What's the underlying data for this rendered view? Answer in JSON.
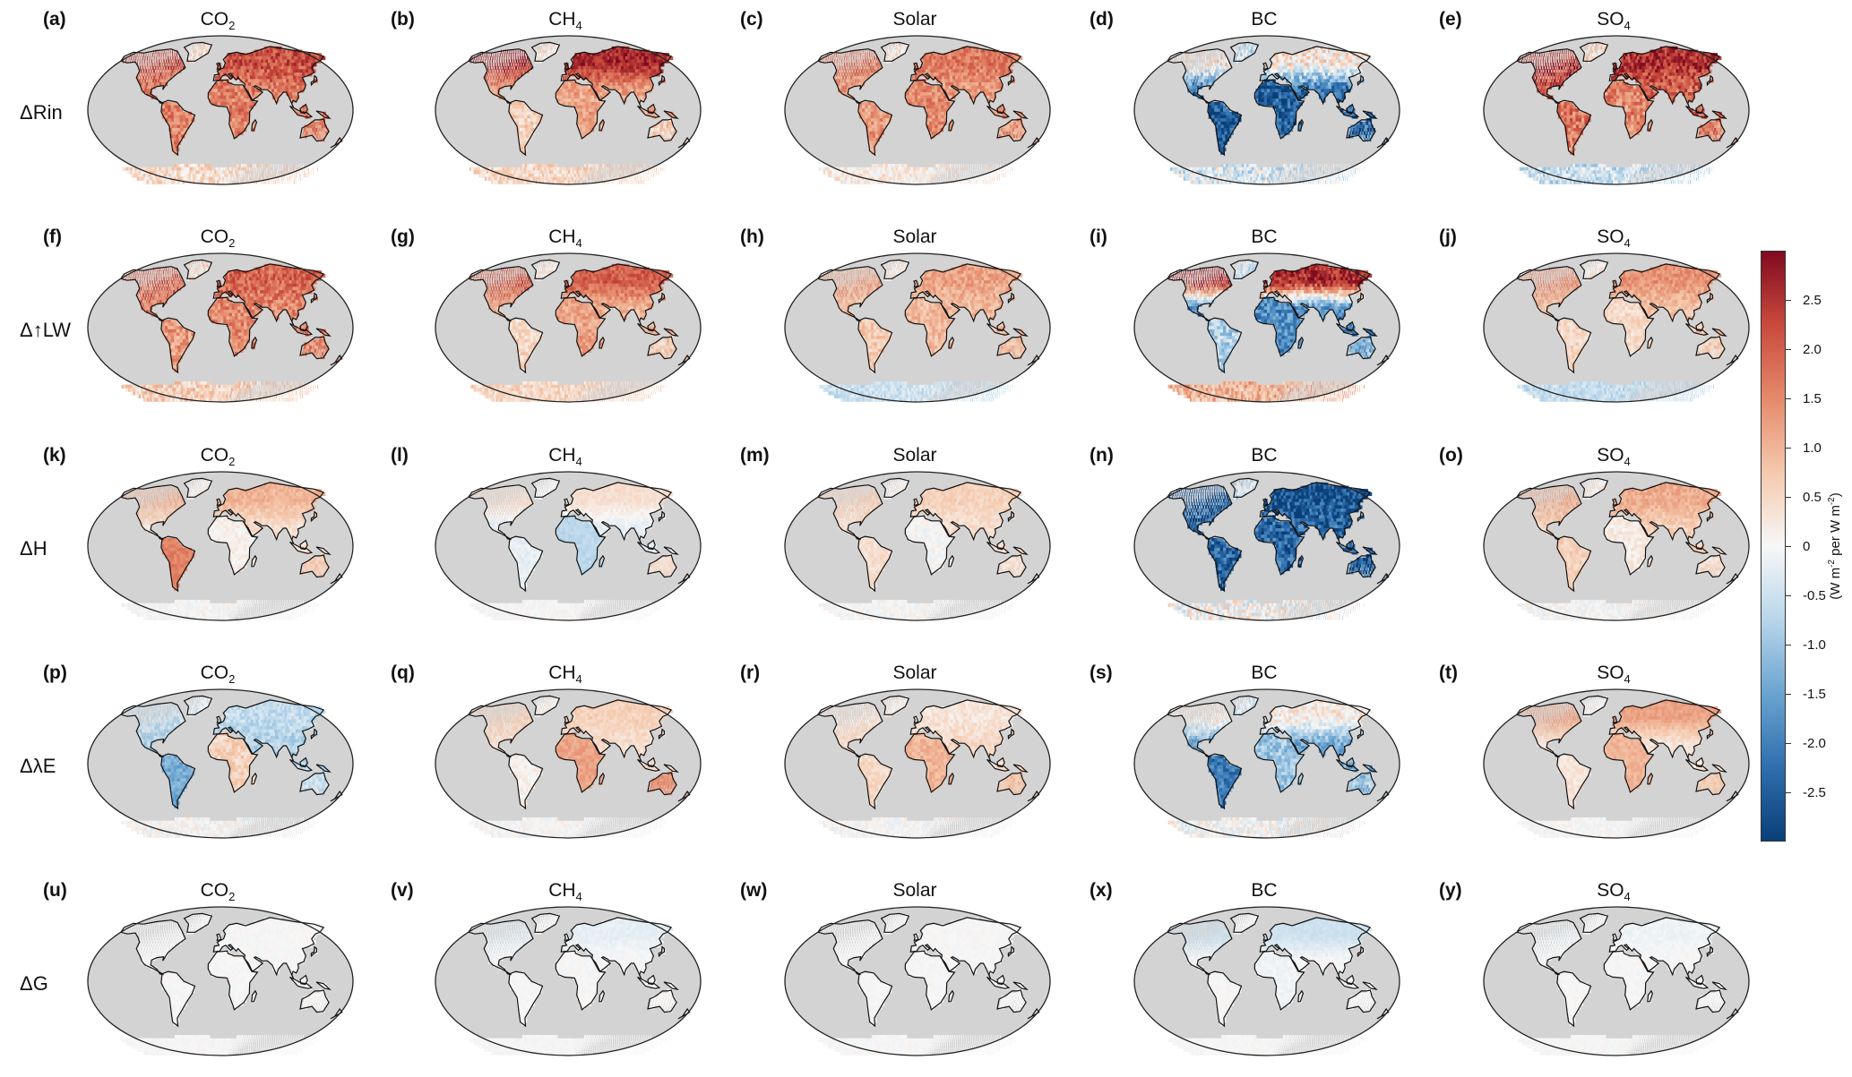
{
  "row_labels": [
    "ΔRin",
    "Δ↑LW",
    "ΔH",
    "ΔλE",
    "ΔG"
  ],
  "column_titles": [
    {
      "main": "CO",
      "sub": "2"
    },
    {
      "main": "CH",
      "sub": "4"
    },
    {
      "main": "Solar",
      "sub": ""
    },
    {
      "main": "BC",
      "sub": ""
    },
    {
      "main": "SO",
      "sub": "4"
    }
  ],
  "panel_letters": [
    "(a)",
    "(b)",
    "(c)",
    "(d)",
    "(e)",
    "(f)",
    "(g)",
    "(h)",
    "(i)",
    "(j)",
    "(k)",
    "(l)",
    "(m)",
    "(n)",
    "(o)",
    "(p)",
    "(q)",
    "(r)",
    "(s)",
    "(t)",
    "(u)",
    "(v)",
    "(w)",
    "(x)",
    "(y)"
  ],
  "colorbar": {
    "ticks": [
      "2.5",
      "2.0",
      "1.5",
      "1.0",
      "0.5",
      "0",
      "-0.5",
      "-1.0",
      "-1.5",
      "-2.0",
      "-2.5"
    ],
    "label_main": "(W m",
    "label_sup1": "-2",
    "label_mid": " per W m",
    "label_sup2": "-2",
    "label_end": ")",
    "colors": [
      "#0a3f78",
      "#2f6fae",
      "#6aa4d0",
      "#b8d6ea",
      "#f7f7f7",
      "#f5c9ad",
      "#e58a6b",
      "#c94a3d",
      "#800a1f"
    ]
  },
  "map_colors": {
    "ocean": "#d3d3d3",
    "coast": "#111111"
  },
  "panel_fields": [
    {
      "base": 1.6,
      "nh": 0.6,
      "africa": 0.0,
      "southam": 0.0,
      "aus": 0.0,
      "antarctic": 0.4
    },
    {
      "base": 1.2,
      "nh": 1.4,
      "africa": 0.0,
      "southam": -0.6,
      "aus": -0.6,
      "antarctic": 0.5
    },
    {
      "base": 1.3,
      "nh": 0.4,
      "africa": 0.2,
      "southam": 0.0,
      "aus": 0.0,
      "antarctic": 0.2
    },
    {
      "base": -2.3,
      "nh": 2.6,
      "africa": -0.2,
      "southam": -0.3,
      "aus": 0.0,
      "antarctic": -0.3
    },
    {
      "base": 1.9,
      "nh": 0.6,
      "africa": -0.4,
      "southam": -0.2,
      "aus": -0.3,
      "antarctic": -0.5
    },
    {
      "base": 1.5,
      "nh": 0.4,
      "africa": 0.0,
      "southam": -0.2,
      "aus": 0.0,
      "antarctic": 0.6
    },
    {
      "base": 1.0,
      "nh": 1.0,
      "africa": 0.2,
      "southam": -0.5,
      "aus": -0.3,
      "antarctic": 0.5
    },
    {
      "base": 0.9,
      "nh": 0.3,
      "africa": 0.0,
      "southam": -0.2,
      "aus": 0.0,
      "antarctic": -0.5
    },
    {
      "base": -1.8,
      "nh": 4.4,
      "africa": 0.0,
      "southam": 1.0,
      "aus": 0.6,
      "antarctic": 1.0
    },
    {
      "base": 0.8,
      "nh": 0.6,
      "africa": -0.3,
      "southam": -0.3,
      "aus": -0.2,
      "antarctic": -0.6
    },
    {
      "base": 0.4,
      "nh": 0.6,
      "africa": -0.3,
      "southam": 1.2,
      "aus": 0.3,
      "antarctic": 0.0
    },
    {
      "base": -0.2,
      "nh": 0.6,
      "africa": -0.5,
      "southam": 0.0,
      "aus": 0.6,
      "antarctic": 0.0
    },
    {
      "base": 0.4,
      "nh": 0.2,
      "africa": -0.4,
      "southam": 0.0,
      "aus": 0.0,
      "antarctic": 0.0
    },
    {
      "base": -2.4,
      "nh": -0.3,
      "africa": 0.0,
      "southam": 0.0,
      "aus": 0.0,
      "antarctic": 0.0
    },
    {
      "base": 0.6,
      "nh": 0.5,
      "africa": -0.4,
      "southam": 0.0,
      "aus": -0.2,
      "antarctic": 0.0
    },
    {
      "base": -0.8,
      "nh": 0.2,
      "africa": 1.4,
      "southam": -0.6,
      "aus": 0.2,
      "antarctic": 0.0
    },
    {
      "base": 0.4,
      "nh": 0.2,
      "africa": 0.8,
      "southam": -0.3,
      "aus": 1.0,
      "antarctic": 0.0
    },
    {
      "base": 0.5,
      "nh": -0.2,
      "africa": 0.5,
      "southam": 0.0,
      "aus": 0.3,
      "antarctic": 0.0
    },
    {
      "base": -1.4,
      "nh": 1.6,
      "africa": 0.4,
      "southam": -0.7,
      "aus": 0.4,
      "antarctic": 0.0
    },
    {
      "base": 0.3,
      "nh": 0.9,
      "africa": 0.7,
      "southam": 0.0,
      "aus": 0.4,
      "antarctic": 0.0
    },
    {
      "base": 0.0,
      "nh": 0.0,
      "africa": 0.0,
      "southam": 0.0,
      "aus": 0.0,
      "antarctic": 0.0
    },
    {
      "base": 0.0,
      "nh": -0.2,
      "africa": 0.0,
      "southam": 0.0,
      "aus": 0.0,
      "antarctic": 0.0
    },
    {
      "base": 0.0,
      "nh": 0.0,
      "africa": 0.0,
      "southam": 0.0,
      "aus": 0.0,
      "antarctic": 0.0
    },
    {
      "base": 0.0,
      "nh": -0.5,
      "africa": -0.1,
      "southam": 0.0,
      "aus": 0.0,
      "antarctic": 0.0
    },
    {
      "base": 0.0,
      "nh": -0.1,
      "africa": 0.0,
      "southam": 0.0,
      "aus": 0.0,
      "antarctic": 0.0
    }
  ]
}
